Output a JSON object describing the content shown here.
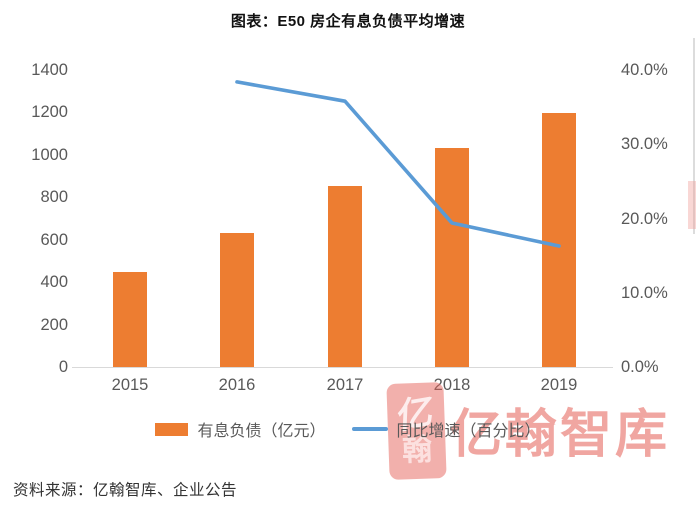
{
  "title": "图表：E50 房企有息负债平均增速",
  "source": "资料来源：亿翰智库、企业公告",
  "watermark": {
    "text": "亿翰智库",
    "seal_top": "亿",
    "seal_bottom": "翰"
  },
  "colors": {
    "bar": "#ED7D31",
    "line": "#5B9BD5",
    "axis_text": "#595959",
    "axis_line": "#D9D9D9",
    "watermark": "#E45C54"
  },
  "chart_data": {
    "type": "bar+line combo",
    "title": "图表：E50 房企有息负债平均增速",
    "categories": [
      "2015",
      "2016",
      "2017",
      "2018",
      "2019"
    ],
    "series": [
      {
        "name": "有息负债（亿元）",
        "type": "bar",
        "axis": "left",
        "color": "#ED7D31",
        "values": [
          450,
          630,
          855,
          1030,
          1195
        ]
      },
      {
        "name": "同比增速（百分比）",
        "type": "line",
        "axis": "right",
        "color": "#5B9BD5",
        "categories": [
          "2016",
          "2017",
          "2018",
          "2019"
        ],
        "values_pct": [
          38.4,
          35.8,
          19.4,
          16.3
        ]
      }
    ],
    "left_axis": {
      "min": 0,
      "max": 1400,
      "step": 200,
      "ticks": [
        "0",
        "200",
        "400",
        "600",
        "800",
        "1000",
        "1200",
        "1400"
      ]
    },
    "right_axis": {
      "min": 0,
      "max": 40,
      "step": 10,
      "ticks": [
        "0.0%",
        "10.0%",
        "20.0%",
        "30.0%",
        "40.0%"
      ]
    },
    "legend_position": "bottom",
    "grid": false
  }
}
